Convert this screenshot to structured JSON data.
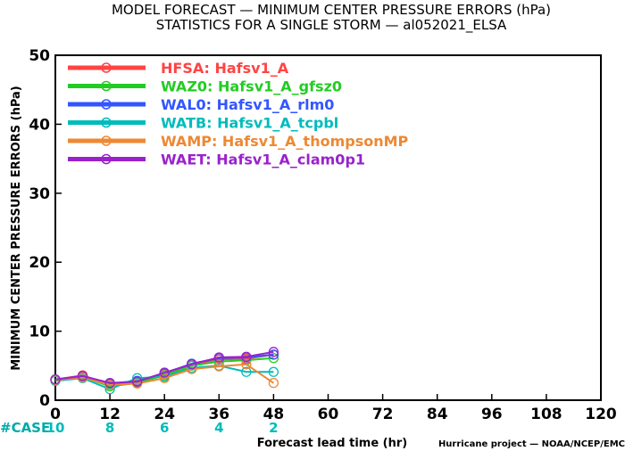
{
  "title_line1": "MODEL FORECAST — MINIMUM CENTER PRESSURE ERRORS (hPa)",
  "title_line2": "STATISTICS FOR A SINGLE STORM — al052021_ELSA",
  "credit": "Hurricane project — NOAA/NCEP/EMC",
  "chart_data": {
    "type": "line",
    "title": "MODEL FORECAST — MINIMUM CENTER PRESSURE ERRORS (hPa)",
    "subtitle": "STATISTICS FOR A SINGLE STORM — al052021_ELSA",
    "xlabel": "Forecast lead time (hr)",
    "ylabel": "MINIMUM CENTER PRESSURE ERRORS (hPa)",
    "xlim": [
      0,
      120
    ],
    "ylim": [
      0,
      50
    ],
    "x_ticks": [
      "0",
      "12",
      "24",
      "36",
      "48",
      "60",
      "72",
      "84",
      "96",
      "108",
      "120"
    ],
    "y_ticks": [
      "0",
      "10",
      "20",
      "30",
      "40",
      "50"
    ],
    "legend_position": "top-left",
    "grid": false,
    "case_label": "#CASE",
    "case_x": [
      0,
      12,
      24,
      36,
      48
    ],
    "case_counts": [
      "10",
      "8",
      "6",
      "4",
      "2"
    ],
    "case_color": "#00bbbb",
    "case_label_color": "#00aaaa",
    "x": [
      0,
      6,
      12,
      18,
      24,
      30,
      36,
      42,
      48
    ],
    "series": [
      {
        "name": "HFSA: Hafsv1_A",
        "color": "#ff4444",
        "values": [
          3.0,
          3.6,
          2.3,
          2.6,
          3.8,
          5.2,
          5.9,
          6.0,
          6.6
        ]
      },
      {
        "name": "WAZ0: Hafsv1_A_gfsz0",
        "color": "#22cc22",
        "values": [
          3.0,
          3.4,
          2.0,
          2.5,
          3.6,
          5.0,
          5.6,
          5.8,
          6.1
        ]
      },
      {
        "name": "WAL0: Hafsv1_A_rlm0",
        "color": "#3355ff",
        "values": [
          3.0,
          3.5,
          2.4,
          2.8,
          3.9,
          5.3,
          6.1,
          6.2,
          6.6
        ]
      },
      {
        "name": "WATB: Hafsv1_A_tcpbl",
        "color": "#00bbbb",
        "values": [
          2.8,
          3.2,
          1.6,
          3.2,
          3.4,
          4.7,
          5.0,
          4.1,
          4.1
        ]
      },
      {
        "name": "WAMP: Hafsv1_A_thompsonMP",
        "color": "#ee8833",
        "values": [
          2.9,
          3.3,
          2.2,
          2.4,
          3.2,
          4.5,
          4.9,
          5.2,
          2.5
        ]
      },
      {
        "name": "WAET: Hafsv1_A_clam0p1",
        "color": "#9922cc",
        "values": [
          3.0,
          3.5,
          2.5,
          2.7,
          4.0,
          5.2,
          6.2,
          6.3,
          7.0
        ]
      }
    ]
  }
}
